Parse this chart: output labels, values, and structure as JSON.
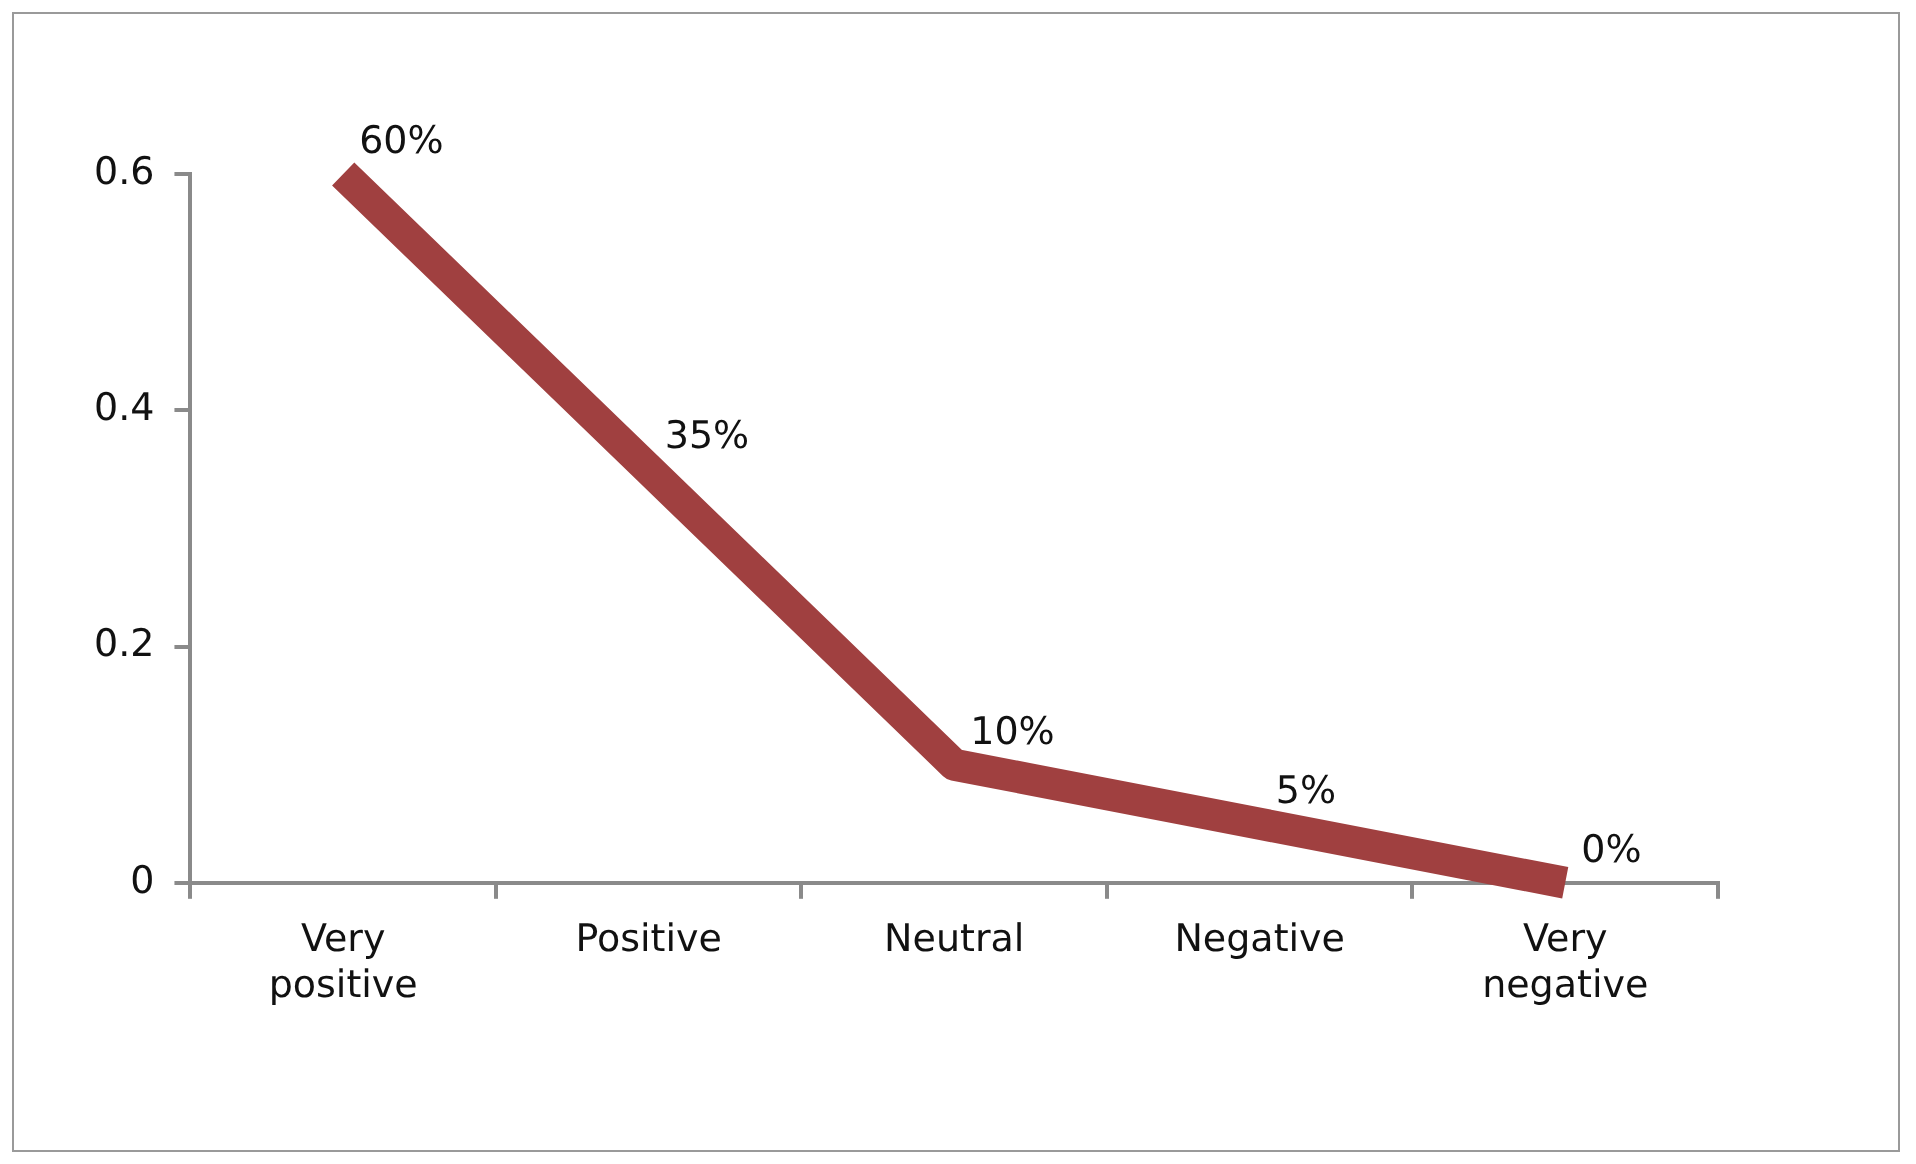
{
  "chart_data": {
    "type": "line",
    "categories": [
      "Very positive",
      "Positive",
      "Neutral",
      "Negative",
      "Very negative"
    ],
    "values": [
      0.6,
      0.35,
      0.1,
      0.05,
      0
    ],
    "value_labels": [
      "60%",
      "35%",
      "10%",
      "5%",
      "0%"
    ],
    "color": "#a04040",
    "ylim": [
      0,
      0.6
    ],
    "yticks": [
      0,
      0.2,
      0.4,
      0.6
    ],
    "marker": "none",
    "line_style": "solid",
    "grid": false,
    "legend": false
  }
}
